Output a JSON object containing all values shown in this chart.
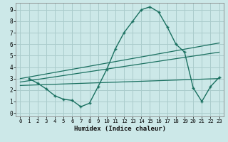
{
  "title": "",
  "xlabel": "Humidex (Indice chaleur)",
  "bg_color": "#cce8e8",
  "grid_color": "#aacccc",
  "line_color": "#1a7060",
  "xlim": [
    -0.5,
    23.5
  ],
  "ylim": [
    -0.3,
    9.6
  ],
  "xticks": [
    0,
    1,
    2,
    3,
    4,
    5,
    6,
    7,
    8,
    9,
    10,
    11,
    12,
    13,
    14,
    15,
    16,
    17,
    18,
    19,
    20,
    21,
    22,
    23
  ],
  "yticks": [
    0,
    1,
    2,
    3,
    4,
    5,
    6,
    7,
    8,
    9
  ],
  "curve1_x": [
    1,
    2,
    3,
    4,
    5,
    6,
    7,
    8,
    9,
    10,
    11,
    12,
    13,
    14,
    15,
    16,
    17,
    18,
    19,
    20,
    21,
    22,
    23
  ],
  "curve1_y": [
    3.0,
    2.6,
    2.1,
    1.5,
    1.2,
    1.1,
    0.55,
    0.85,
    2.3,
    3.8,
    5.6,
    7.0,
    8.0,
    9.0,
    9.25,
    8.8,
    7.5,
    6.0,
    5.3,
    2.2,
    1.0,
    2.3,
    3.1
  ],
  "line2_x": [
    0,
    23
  ],
  "line2_y": [
    3.0,
    6.1
  ],
  "line3_x": [
    0,
    23
  ],
  "line3_y": [
    2.7,
    5.3
  ],
  "line4_x": [
    0,
    23
  ],
  "line4_y": [
    2.4,
    3.0
  ]
}
